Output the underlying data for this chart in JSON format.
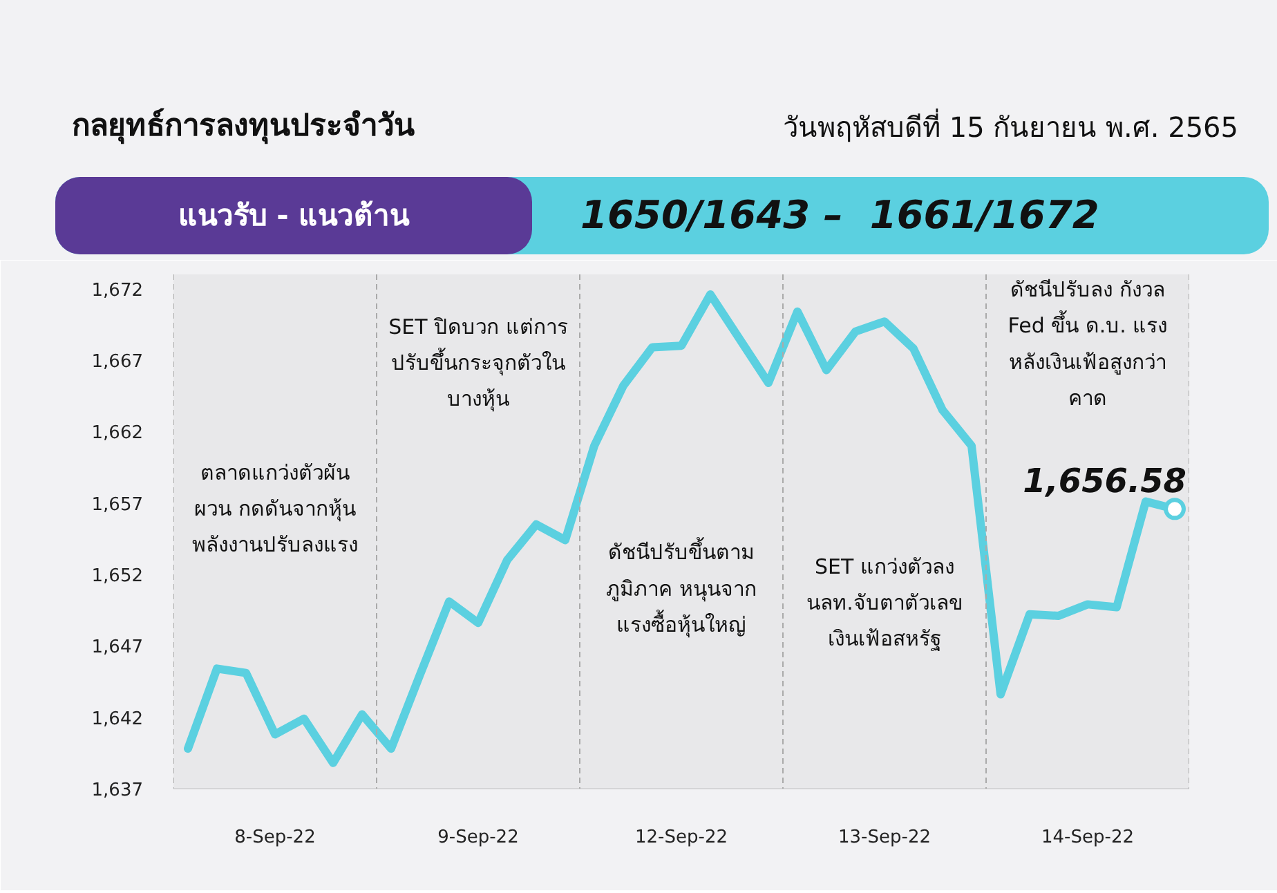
{
  "chart_data": {
    "type": "line",
    "title": "กลยุทธ์การลงทุนประจำวัน",
    "subtitle": "วันพฤหัสบดีที่ 15 กันยายน พ.ศ. 2565",
    "annotations": [
      "แนวรับ - แนวต้าน",
      "1650/1643 –  1661/1672",
      "ตลาดแกว่งตัวผัน\nผวน กดดันจากหุ้น\nพลังงานปรับลงแรง",
      "SET ปิดบวก แต่การ\nปรับขึ้นกระจุกตัวใน\nบางหุ้น",
      "ดัชนีปรับขึ้นตาม\nภูมิภาค หนุนจาก\nแรงซื้อหุ้นใหญ่",
      "SET แกว่งตัวลง\nนลท.จับตาตัวเลข\nเงินเฟ้อสหรัฐ",
      "ดัชนีปรับลง กังวล\nFed ขึ้น ด.บ. แรง\nหลังเงินเฟ้อสูงกว่า\nคาด"
    ],
    "categories": [
      null,
      null,
      null,
      "8-Sep-22",
      null,
      null,
      null,
      null,
      null,
      null,
      "9-Sep-22",
      null,
      null,
      null,
      null,
      null,
      null,
      "12-Sep-22",
      null,
      null,
      null,
      null,
      null,
      null,
      "13-Sep-22",
      null,
      null,
      null,
      null,
      null,
      null,
      "14-Sep-22",
      null,
      null,
      null
    ],
    "series": [
      {
        "color": "#5bd0e0",
        "values": [
          1639.8,
          1645.4,
          1645.1,
          1640.8,
          1641.9,
          1638.8,
          1642.2,
          1639.8,
          1645.0,
          1650.1,
          1648.6,
          1653.0,
          1655.5,
          1654.4,
          1661.0,
          1665.2,
          1667.9,
          1668.0,
          1671.6,
          1668.5,
          1665.4,
          1670.4,
          1666.3,
          1669.0,
          1669.7,
          1667.8,
          1663.5,
          1661.0,
          1643.6,
          1649.2,
          1649.1,
          1649.9,
          1649.7,
          1657.1,
          1656.58
        ]
      },
      {
        "type": "scatter",
        "color": "#5bd0e0",
        "marker": "circle",
        "values": [
          null,
          null,
          null,
          null,
          null,
          null,
          null,
          null,
          null,
          null,
          null,
          null,
          null,
          null,
          null,
          null,
          null,
          null,
          null,
          null,
          null,
          null,
          null,
          null,
          null,
          null,
          null,
          null,
          null,
          null,
          null,
          null,
          null,
          null,
          1656.58
        ],
        "value_labels": [
          null,
          null,
          null,
          null,
          null,
          null,
          null,
          null,
          null,
          null,
          null,
          null,
          null,
          null,
          null,
          null,
          null,
          null,
          null,
          null,
          null,
          null,
          null,
          null,
          null,
          null,
          null,
          null,
          null,
          null,
          null,
          null,
          null,
          null,
          "1,656.58"
        ]
      }
    ],
    "ylim": [
      1637,
      1673
    ],
    "yticks": [
      {
        "value": 1637,
        "label": "1,637"
      },
      {
        "value": 1642,
        "label": "1,642"
      },
      {
        "value": 1647,
        "label": "1,647"
      },
      {
        "value": 1652,
        "label": "1,652"
      },
      {
        "value": 1657,
        "label": "1,657"
      },
      {
        "value": 1662,
        "label": "1,662"
      },
      {
        "value": 1667,
        "label": "1,667"
      },
      {
        "value": 1672,
        "label": "1,672"
      }
    ]
  }
}
